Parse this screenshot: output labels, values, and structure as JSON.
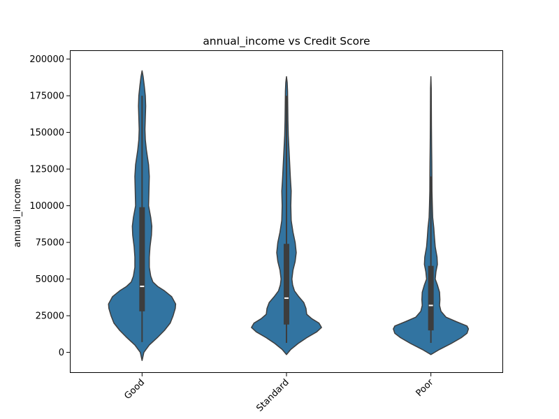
{
  "chart_data": {
    "type": "violin",
    "title": "annual_income vs Credit Score",
    "xlabel": "",
    "ylabel": "annual_income",
    "ylim": [
      -14000,
      206000
    ],
    "yticks": [
      0,
      25000,
      50000,
      75000,
      100000,
      125000,
      150000,
      175000,
      200000
    ],
    "categories": [
      "Good",
      "Standard",
      "Poor"
    ],
    "grid": false,
    "colors": {
      "fill": "#3274a1",
      "outline": "#3d3d3d",
      "box": "#3d3d3d",
      "median": "#ffffff"
    },
    "violins": [
      {
        "category": "Good",
        "min": 7000,
        "q1": 28000,
        "median": 45000,
        "q3": 99000,
        "max": 175000,
        "kde_min": -5500,
        "kde_max": 192000,
        "profile": [
          [
            -5500,
            0.0
          ],
          [
            0,
            0.05
          ],
          [
            5000,
            0.2
          ],
          [
            10000,
            0.42
          ],
          [
            15000,
            0.62
          ],
          [
            20000,
            0.78
          ],
          [
            25000,
            0.86
          ],
          [
            30000,
            0.92
          ],
          [
            33000,
            0.93
          ],
          [
            38000,
            0.82
          ],
          [
            42000,
            0.62
          ],
          [
            45000,
            0.43
          ],
          [
            48000,
            0.3
          ],
          [
            52000,
            0.24
          ],
          [
            58000,
            0.2
          ],
          [
            65000,
            0.2
          ],
          [
            72000,
            0.22
          ],
          [
            80000,
            0.26
          ],
          [
            86000,
            0.27
          ],
          [
            92000,
            0.24
          ],
          [
            100000,
            0.18
          ],
          [
            110000,
            0.19
          ],
          [
            120000,
            0.2
          ],
          [
            128000,
            0.18
          ],
          [
            138000,
            0.12
          ],
          [
            145000,
            0.09
          ],
          [
            152000,
            0.08
          ],
          [
            160000,
            0.09
          ],
          [
            168000,
            0.1
          ],
          [
            175000,
            0.09
          ],
          [
            182000,
            0.06
          ],
          [
            188000,
            0.03
          ],
          [
            192000,
            0.0
          ]
        ]
      },
      {
        "category": "Standard",
        "min": 6500,
        "q1": 19000,
        "median": 37000,
        "q3": 74000,
        "max": 175000,
        "kde_min": -1500,
        "kde_max": 188000,
        "profile": [
          [
            -1500,
            0.0
          ],
          [
            2000,
            0.12
          ],
          [
            6000,
            0.32
          ],
          [
            10000,
            0.56
          ],
          [
            14000,
            0.84
          ],
          [
            17000,
            0.97
          ],
          [
            20000,
            0.9
          ],
          [
            23000,
            0.7
          ],
          [
            26000,
            0.56
          ],
          [
            30000,
            0.54
          ],
          [
            34000,
            0.48
          ],
          [
            38000,
            0.34
          ],
          [
            42000,
            0.22
          ],
          [
            46000,
            0.17
          ],
          [
            50000,
            0.15
          ],
          [
            56000,
            0.18
          ],
          [
            62000,
            0.24
          ],
          [
            68000,
            0.27
          ],
          [
            75000,
            0.24
          ],
          [
            82000,
            0.18
          ],
          [
            90000,
            0.13
          ],
          [
            100000,
            0.12
          ],
          [
            110000,
            0.13
          ],
          [
            118000,
            0.11
          ],
          [
            128000,
            0.09
          ],
          [
            138000,
            0.07
          ],
          [
            148000,
            0.05
          ],
          [
            158000,
            0.04
          ],
          [
            168000,
            0.035
          ],
          [
            178000,
            0.03
          ],
          [
            184000,
            0.02
          ],
          [
            188000,
            0.0
          ]
        ]
      },
      {
        "category": "Poor",
        "min": 6500,
        "q1": 15000,
        "median": 32000,
        "q3": 59000,
        "max": 120000,
        "kde_min": -1500,
        "kde_max": 188000,
        "profile": [
          [
            -1500,
            0.0
          ],
          [
            2000,
            0.24
          ],
          [
            6000,
            0.56
          ],
          [
            10000,
            0.84
          ],
          [
            13000,
            1.0
          ],
          [
            16000,
            1.04
          ],
          [
            18000,
            1.0
          ],
          [
            21000,
            0.7
          ],
          [
            24000,
            0.42
          ],
          [
            28000,
            0.28
          ],
          [
            32000,
            0.24
          ],
          [
            36000,
            0.25
          ],
          [
            41000,
            0.24
          ],
          [
            46000,
            0.18
          ],
          [
            50000,
            0.12
          ],
          [
            55000,
            0.14
          ],
          [
            60000,
            0.18
          ],
          [
            65000,
            0.17
          ],
          [
            72000,
            0.12
          ],
          [
            78000,
            0.1
          ],
          [
            85000,
            0.08
          ],
          [
            92000,
            0.05
          ],
          [
            100000,
            0.04
          ],
          [
            110000,
            0.03
          ],
          [
            120000,
            0.028
          ],
          [
            130000,
            0.025
          ],
          [
            140000,
            0.02
          ],
          [
            155000,
            0.015
          ],
          [
            170000,
            0.012
          ],
          [
            180000,
            0.01
          ],
          [
            188000,
            0.0
          ]
        ]
      }
    ]
  }
}
